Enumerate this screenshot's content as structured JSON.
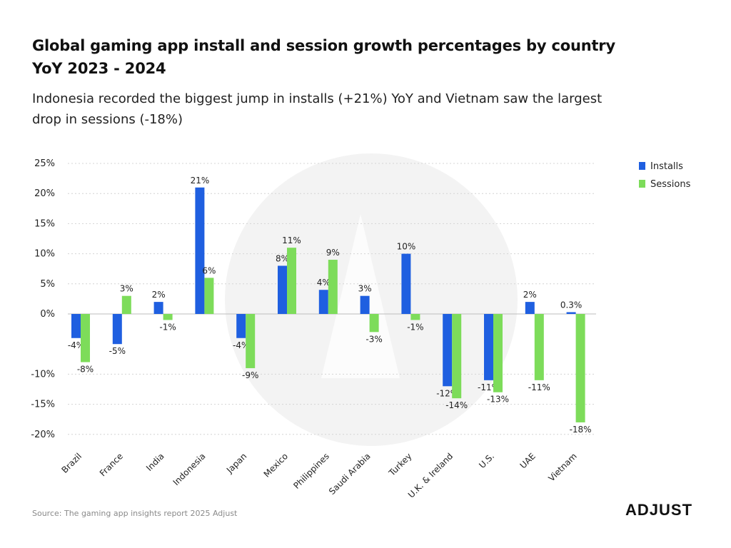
{
  "title_line1": "Global gaming app install and session growth percentages by country",
  "title_line2": "YoY 2023 - 2024",
  "subtitle_line1": "Indonesia recorded the biggest jump in installs (+21%) YoY and Vietnam saw the largest",
  "subtitle_line2": "drop in sessions (-18%)",
  "source": "Source: The gaming app insights report 2025 Adjust",
  "logo_text": "ADJUST",
  "chart_data": {
    "type": "bar",
    "title": "Global gaming app install and session growth percentages by country YoY 2023 - 2024",
    "categories": [
      "Brazil",
      "France",
      "India",
      "Indonesia",
      "Japan",
      "Mexico",
      "Philippines",
      "Saudi Arabia",
      "Turkey",
      "U.K. & Ireland",
      "U.S.",
      "UAE",
      "Vietnam"
    ],
    "series": [
      {
        "name": "Installs",
        "color": "#1f5fe0",
        "values": [
          -4,
          -5,
          2,
          21,
          -4,
          8,
          4,
          3,
          10,
          -12,
          -11,
          2,
          0.3
        ],
        "labels": [
          "-4%",
          "-5%",
          "2%",
          "21%",
          "-4%",
          "8%",
          "4%",
          "3%",
          "10%",
          "-12%",
          "-11%",
          "2%",
          "0.3%"
        ]
      },
      {
        "name": "Sessions",
        "color": "#7ddc5a",
        "values": [
          -8,
          3,
          -1,
          6,
          -9,
          11,
          9,
          -3,
          -1,
          -14,
          -13,
          -11,
          -18
        ],
        "labels": [
          "-8%",
          "3%",
          "-1%",
          "6%",
          "-9%",
          "11%",
          "9%",
          "-3%",
          "-1%",
          "-14%",
          "-13%",
          "-11%",
          "-18%"
        ]
      }
    ],
    "ylim": [
      -20,
      25
    ],
    "yticks": [
      25,
      20,
      15,
      10,
      5,
      0,
      -10,
      -15,
      -20
    ],
    "ytick_labels": [
      "25%",
      "20%",
      "15%",
      "10%",
      "5%",
      "0%",
      "-10%",
      "-15%",
      "-20%"
    ],
    "grid": true,
    "legend_position": "top-right",
    "xlabel": "",
    "ylabel": ""
  }
}
